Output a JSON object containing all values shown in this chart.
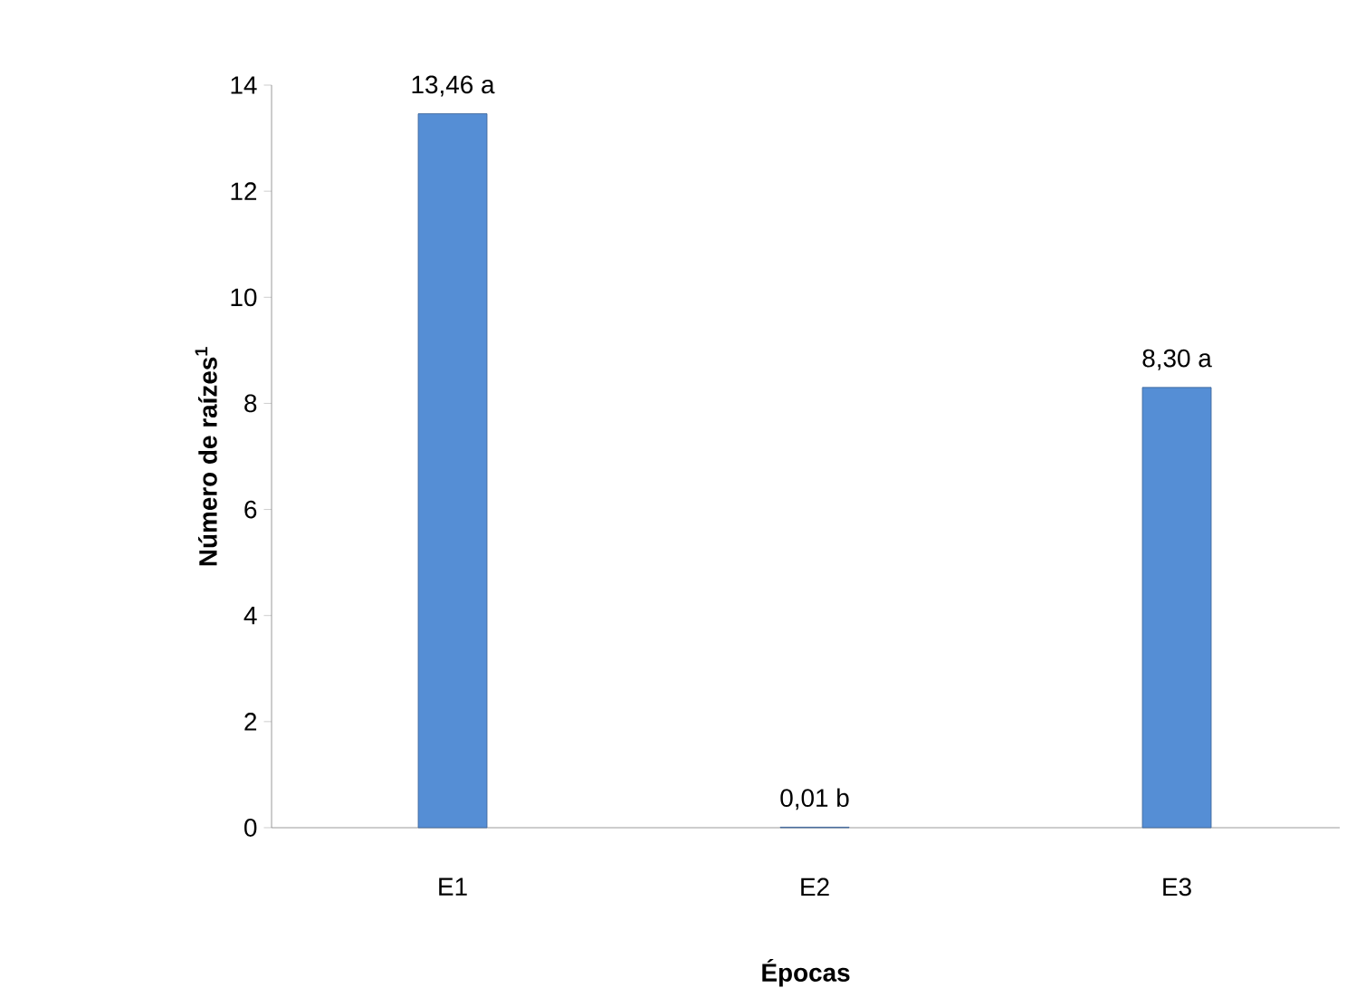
{
  "chart_data": {
    "type": "bar",
    "xlabel": "Épocas",
    "ylabel": "Número de raízes$^{1}$",
    "categories": [
      "E1",
      "E2",
      "E3"
    ],
    "values": [
      13.46,
      0.01,
      8.3
    ],
    "color": "#558ed5",
    "value_labels": [
      "13,46 a",
      "0,01 b",
      "8,30 a"
    ],
    "ylim": [
      0,
      14
    ],
    "yticks": [
      0,
      2,
      4,
      6,
      8,
      10,
      12,
      14
    ],
    "grid": false
  }
}
